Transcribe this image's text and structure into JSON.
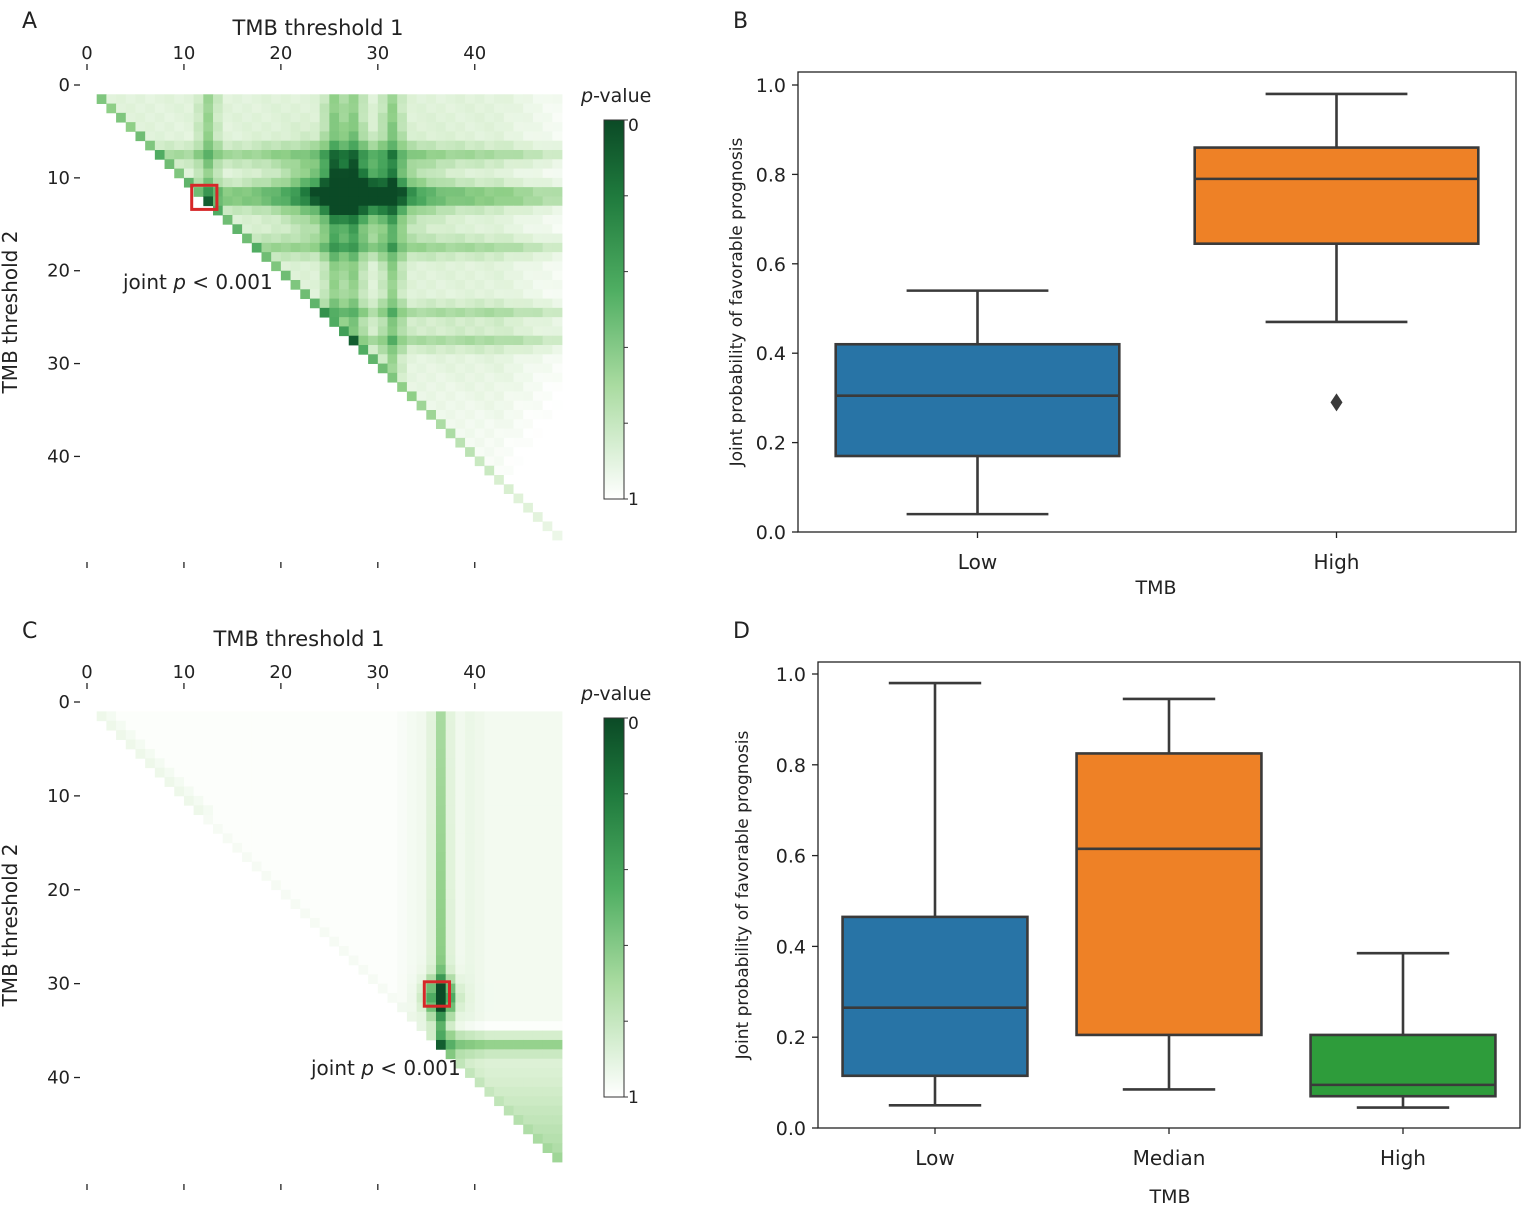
{
  "colors": {
    "heat_dark": "#0b4a26",
    "heat_mid": "#3fa35a",
    "heat_light": "#f4fbf1",
    "low_box": "#2874a6",
    "median_box": "#ee8126",
    "high_box_B": "#ee8126",
    "high_box_D": "#2e9c3b",
    "highlight": "#d62728",
    "axis": "#222222",
    "whisker": "#3a3a3a"
  },
  "chart_data": [
    {
      "panel": "A",
      "type": "heatmap",
      "title": "TMB threshold 1",
      "xlabel": "TMB threshold 1",
      "ylabel": "TMB threshold 2",
      "xticks": [
        "0",
        "10",
        "20",
        "30",
        "40"
      ],
      "yticks": [
        "0",
        "10",
        "20",
        "30",
        "40"
      ],
      "xlim": [
        0,
        49
      ],
      "ylim": [
        0,
        49
      ],
      "colorbar": {
        "label_italic": "p",
        "label_rest": "-value",
        "min_label": "0",
        "max_label": "1"
      },
      "highlight": {
        "x": 12,
        "y": 12
      },
      "annotation": {
        "text_pre": "joint ",
        "text_italic": "p",
        "text_post": " < 0.001"
      },
      "hot_columns": [
        12,
        25,
        27,
        31
      ],
      "hot_rows": [
        7,
        11,
        12,
        17,
        24,
        27
      ],
      "peak": {
        "x": 27,
        "y": 11
      },
      "triangle": "upper"
    },
    {
      "panel": "B",
      "type": "box",
      "xlabel": "TMB",
      "ylabel": "Joint probability of favorable prognosis",
      "ylim": [
        0,
        1.0
      ],
      "yticks": [
        "0.0",
        "0.2",
        "0.4",
        "0.6",
        "0.8",
        "1.0"
      ],
      "categories": [
        "Low",
        "High"
      ],
      "boxes": [
        {
          "category": "Low",
          "whisker_low": 0.04,
          "q1": 0.17,
          "median": 0.305,
          "q3": 0.42,
          "whisker_high": 0.54,
          "outliers": []
        },
        {
          "category": "High",
          "whisker_low": 0.47,
          "q1": 0.645,
          "median": 0.79,
          "q3": 0.86,
          "whisker_high": 0.98,
          "outliers": [
            0.29
          ]
        }
      ]
    },
    {
      "panel": "C",
      "type": "heatmap",
      "title": "TMB threshold 1",
      "xlabel": "TMB threshold 1",
      "ylabel": "TMB threshold 2",
      "xticks": [
        "0",
        "10",
        "20",
        "30",
        "40"
      ],
      "yticks": [
        "0",
        "10",
        "20",
        "30",
        "40"
      ],
      "xlim": [
        0,
        49
      ],
      "ylim": [
        0,
        49
      ],
      "colorbar": {
        "label_italic": "p",
        "label_rest": "-value",
        "min_label": "0",
        "max_label": "1"
      },
      "highlight": {
        "x": 36,
        "y": 31
      },
      "annotation": {
        "text_pre": "joint ",
        "text_italic": "p",
        "text_post": " < 0.001"
      },
      "hot_columns": [
        36
      ],
      "hot_rows": [
        36
      ],
      "peak": {
        "x": 36,
        "y": 31
      },
      "triangle": "upper"
    },
    {
      "panel": "D",
      "type": "box",
      "xlabel": "TMB",
      "ylabel": "Joint probability of favorable prognosis",
      "ylim": [
        0,
        1.0
      ],
      "yticks": [
        "0.0",
        "0.2",
        "0.4",
        "0.6",
        "0.8",
        "1.0"
      ],
      "categories": [
        "Low",
        "Median",
        "High"
      ],
      "boxes": [
        {
          "category": "Low",
          "whisker_low": 0.05,
          "q1": 0.115,
          "median": 0.265,
          "q3": 0.465,
          "whisker_high": 0.98,
          "outliers": []
        },
        {
          "category": "Median",
          "whisker_low": 0.085,
          "q1": 0.205,
          "median": 0.615,
          "q3": 0.825,
          "whisker_high": 0.945,
          "outliers": []
        },
        {
          "category": "High",
          "whisker_low": 0.045,
          "q1": 0.07,
          "median": 0.095,
          "q3": 0.205,
          "whisker_high": 0.385,
          "outliers": []
        }
      ]
    }
  ]
}
